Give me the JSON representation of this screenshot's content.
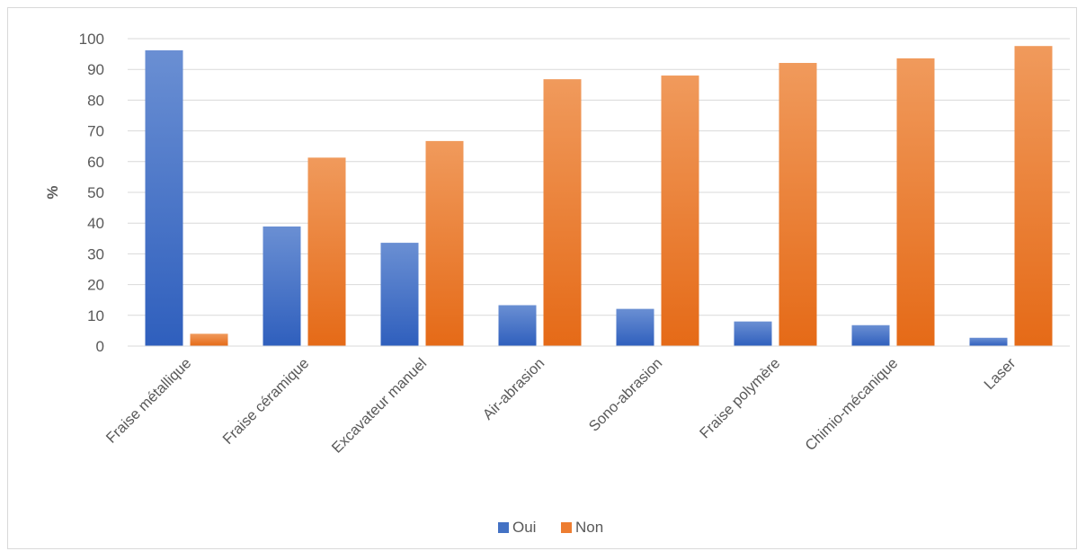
{
  "chart_data": {
    "type": "bar",
    "ylabel": "%",
    "ylim": [
      0,
      100
    ],
    "yticks": [
      0,
      10,
      20,
      30,
      40,
      50,
      60,
      70,
      80,
      90,
      100
    ],
    "grid": true,
    "legend_position": "bottom",
    "categories": [
      "Fraise métallique",
      "Fraise céramique",
      "Excavateur manuel",
      "Air-abrasion",
      "Sono-abrasion",
      "Fraise polymère",
      "Chimio-mécanique",
      "Laser"
    ],
    "series": [
      {
        "name": "Oui",
        "color": "#4472c4",
        "values": [
          96.2,
          38.9,
          33.6,
          13.3,
          12.1,
          8.0,
          6.8,
          2.7
        ]
      },
      {
        "name": "Non",
        "color": "#ed7d31",
        "values": [
          4.0,
          61.3,
          66.7,
          86.8,
          88.0,
          92.1,
          93.6,
          97.6
        ]
      }
    ]
  }
}
